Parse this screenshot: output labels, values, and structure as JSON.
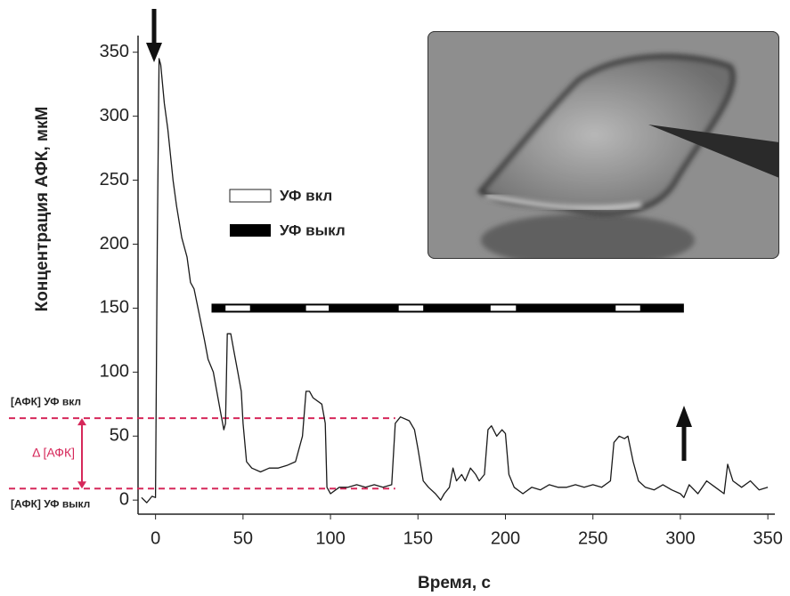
{
  "chart_data": {
    "type": "line",
    "x_label": "Время, с",
    "y_label": "Концентрация АФК, мкМ",
    "color": "#1a1a1a",
    "xlim": [
      -10,
      354
    ],
    "ylim": [
      -11,
      363
    ],
    "xticks": [
      0,
      50,
      100,
      150,
      200,
      250,
      300,
      350
    ],
    "yticks": [
      0,
      50,
      100,
      150,
      200,
      250,
      300,
      350
    ],
    "x": [
      -8,
      -5,
      -2,
      0,
      1,
      2,
      3,
      5,
      7,
      10,
      12,
      15,
      18,
      20,
      22,
      25,
      28,
      30,
      33,
      35,
      37,
      39,
      40,
      41,
      43,
      45,
      47,
      49,
      50,
      52,
      55,
      60,
      65,
      70,
      75,
      80,
      84,
      86,
      88,
      90,
      95,
      97,
      98,
      100,
      105,
      110,
      115,
      120,
      125,
      130,
      135,
      137,
      140,
      145,
      148,
      150,
      153,
      156,
      160,
      163,
      165,
      168,
      170,
      172,
      175,
      177,
      180,
      183,
      185,
      188,
      190,
      192,
      195,
      198,
      200,
      202,
      205,
      210,
      215,
      220,
      225,
      230,
      235,
      240,
      245,
      250,
      255,
      260,
      262,
      265,
      268,
      270,
      273,
      276,
      280,
      285,
      290,
      295,
      300,
      302,
      305,
      310,
      315,
      320,
      325,
      327,
      330,
      335,
      340,
      345,
      350
    ],
    "values": [
      2,
      -2,
      3,
      2,
      200,
      345,
      340,
      310,
      290,
      250,
      230,
      205,
      190,
      170,
      165,
      145,
      125,
      110,
      100,
      85,
      70,
      55,
      60,
      130,
      130,
      115,
      100,
      85,
      60,
      30,
      25,
      22,
      25,
      25,
      27,
      30,
      50,
      85,
      85,
      80,
      75,
      60,
      10,
      5,
      10,
      10,
      12,
      10,
      12,
      10,
      12,
      60,
      65,
      62,
      55,
      40,
      15,
      10,
      5,
      0,
      5,
      10,
      25,
      15,
      20,
      15,
      25,
      20,
      15,
      20,
      55,
      58,
      50,
      55,
      52,
      20,
      10,
      5,
      10,
      8,
      12,
      10,
      10,
      12,
      10,
      12,
      10,
      15,
      45,
      50,
      48,
      50,
      30,
      15,
      10,
      8,
      12,
      8,
      5,
      2,
      12,
      5,
      15,
      10,
      5,
      28,
      15,
      10,
      15,
      8,
      10
    ],
    "reference_lines": [
      {
        "value": 64,
        "x_end": 137,
        "label": "[АФК] УФ вкл",
        "color": "#d6285a"
      },
      {
        "value": 9,
        "x_end": 137,
        "label": "[АФК] УФ выкл",
        "color": "#d6285a"
      }
    ],
    "delta_label": "Δ [АФК]",
    "uv_bar": {
      "y": 150,
      "range": [
        32,
        302
      ],
      "on_intervals": [
        [
          40,
          54
        ],
        [
          86,
          99
        ],
        [
          139,
          153
        ],
        [
          191.5,
          206
        ],
        [
          263,
          277
        ]
      ],
      "on_label": "УФ вкл",
      "off_label": "УФ выкл"
    }
  }
}
